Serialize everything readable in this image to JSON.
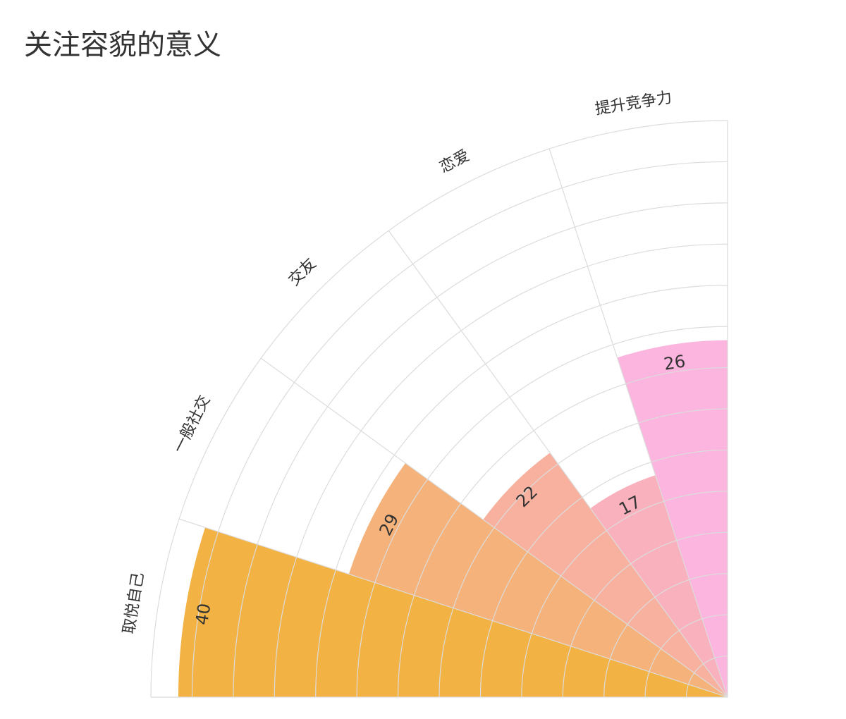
{
  "chart_data": {
    "type": "polar_bar",
    "title": "关注容貌的意义",
    "categories": [
      "取悦自己",
      "一般社交",
      "交友",
      "恋爱",
      "提升竞争力"
    ],
    "values": [
      40,
      29,
      22,
      17,
      26
    ],
    "colors": [
      "#f3b244",
      "#f5b27a",
      "#f8b19f",
      "#f9b2bd",
      "#fcb5de"
    ],
    "rlim": [
      0,
      42
    ],
    "rticks": [
      0,
      3,
      6,
      9,
      12,
      15,
      18,
      21,
      24,
      27,
      30,
      33,
      36,
      39,
      42
    ],
    "grid": true
  }
}
